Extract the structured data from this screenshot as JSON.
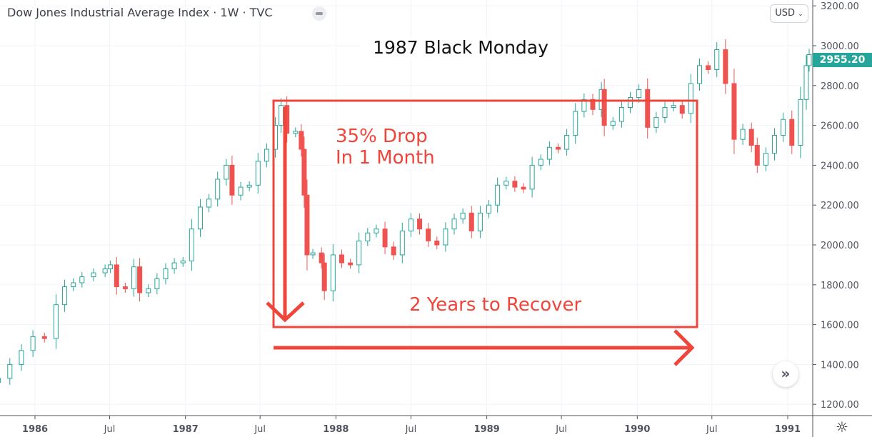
{
  "header": {
    "title": "Dow Jones Industrial Average Index · 1W · TVC",
    "currency": "USD"
  },
  "last_price": "2955.20",
  "annotations": {
    "headline": "1987 Black Monday",
    "drop_line1": "35% Drop",
    "drop_line2": "In 1 Month",
    "recover": "2 Years to Recover"
  },
  "colors": {
    "up": "#26a69a",
    "down": "#ef5350",
    "annotation": "#f0453a",
    "last_price_bg": "#26a69a"
  },
  "icons": {
    "scroll": "double-chevron-right-icon",
    "settings": "gear-icon"
  },
  "chart_data": {
    "type": "candlestick",
    "interval": "1W",
    "ylim": [
      1200,
      3200
    ],
    "yticks": [
      "3200.00",
      "3000.00",
      "2800.00",
      "2600.00",
      "2400.00",
      "2200.00",
      "2000.00",
      "1800.00",
      "1600.00",
      "1400.00",
      "1200.00"
    ],
    "ytick_values": [
      3200,
      3000,
      2800,
      2600,
      2400,
      2200,
      2000,
      1800,
      1600,
      1400,
      1200
    ],
    "xticks": [
      {
        "label": "1986",
        "date": "1986-01-01"
      },
      {
        "label": "Jul",
        "date": "1986-07-01"
      },
      {
        "label": "1987",
        "date": "1987-01-01"
      },
      {
        "label": "Jul",
        "date": "1987-07-01"
      },
      {
        "label": "1988",
        "date": "1988-01-01"
      },
      {
        "label": "Jul",
        "date": "1988-07-01"
      },
      {
        "label": "1989",
        "date": "1989-01-01"
      },
      {
        "label": "Jul",
        "date": "1989-07-01"
      },
      {
        "label": "1990",
        "date": "1990-01-01"
      },
      {
        "label": "Jul",
        "date": "1990-07-01"
      },
      {
        "label": "1991",
        "date": "1991-01-01"
      }
    ],
    "grid": true,
    "closes": [
      [
        "1985-10-04",
        1330
      ],
      [
        "1985-11-01",
        1400
      ],
      [
        "1985-11-29",
        1470
      ],
      [
        "1985-12-27",
        1540
      ],
      [
        "1986-01-24",
        1530
      ],
      [
        "1986-02-21",
        1700
      ],
      [
        "1986-03-14",
        1790
      ],
      [
        "1986-04-04",
        1810
      ],
      [
        "1986-04-25",
        1840
      ],
      [
        "1986-05-23",
        1860
      ],
      [
        "1986-06-20",
        1880
      ],
      [
        "1986-07-03",
        1900
      ],
      [
        "1986-07-18",
        1790
      ],
      [
        "1986-08-08",
        1780
      ],
      [
        "1986-08-29",
        1890
      ],
      [
        "1986-09-12",
        1760
      ],
      [
        "1986-10-03",
        1780
      ],
      [
        "1986-10-24",
        1830
      ],
      [
        "1986-11-14",
        1880
      ],
      [
        "1986-12-05",
        1910
      ],
      [
        "1986-12-26",
        1920
      ],
      [
        "1987-01-16",
        2080
      ],
      [
        "1987-02-06",
        2190
      ],
      [
        "1987-02-27",
        2230
      ],
      [
        "1987-03-20",
        2330
      ],
      [
        "1987-04-10",
        2400
      ],
      [
        "1987-04-24",
        2250
      ],
      [
        "1987-05-15",
        2290
      ],
      [
        "1987-06-05",
        2300
      ],
      [
        "1987-06-26",
        2420
      ],
      [
        "1987-07-17",
        2480
      ],
      [
        "1987-08-07",
        2600
      ],
      [
        "1987-08-21",
        2700
      ],
      [
        "1987-09-04",
        2560
      ],
      [
        "1987-09-25",
        2570
      ],
      [
        "1987-10-09",
        2480
      ],
      [
        "1987-10-16",
        2250
      ],
      [
        "1987-10-23",
        1950
      ],
      [
        "1987-11-06",
        1960
      ],
      [
        "1987-11-27",
        1910
      ],
      [
        "1987-12-04",
        1770
      ],
      [
        "1987-12-25",
        1950
      ],
      [
        "1988-01-15",
        1910
      ],
      [
        "1988-02-05",
        1900
      ],
      [
        "1988-02-26",
        2020
      ],
      [
        "1988-03-18",
        2060
      ],
      [
        "1988-04-08",
        2080
      ],
      [
        "1988-04-29",
        1990
      ],
      [
        "1988-05-20",
        1950
      ],
      [
        "1988-06-10",
        2070
      ],
      [
        "1988-07-01",
        2130
      ],
      [
        "1988-07-22",
        2080
      ],
      [
        "1988-08-12",
        2020
      ],
      [
        "1988-09-02",
        2000
      ],
      [
        "1988-09-23",
        2080
      ],
      [
        "1988-10-14",
        2130
      ],
      [
        "1988-11-04",
        2160
      ],
      [
        "1988-11-25",
        2070
      ],
      [
        "1988-12-16",
        2160
      ],
      [
        "1989-01-06",
        2200
      ],
      [
        "1989-01-27",
        2300
      ],
      [
        "1989-02-17",
        2320
      ],
      [
        "1989-03-10",
        2290
      ],
      [
        "1989-03-31",
        2280
      ],
      [
        "1989-04-21",
        2400
      ],
      [
        "1989-05-12",
        2430
      ],
      [
        "1989-06-02",
        2490
      ],
      [
        "1989-06-23",
        2480
      ],
      [
        "1989-07-14",
        2550
      ],
      [
        "1989-08-04",
        2670
      ],
      [
        "1989-08-25",
        2730
      ],
      [
        "1989-09-15",
        2680
      ],
      [
        "1989-10-06",
        2780
      ],
      [
        "1989-10-13",
        2600
      ],
      [
        "1989-11-03",
        2620
      ],
      [
        "1989-11-24",
        2690
      ],
      [
        "1989-12-15",
        2740
      ],
      [
        "1990-01-05",
        2780
      ],
      [
        "1990-01-26",
        2590
      ],
      [
        "1990-02-16",
        2640
      ],
      [
        "1990-03-09",
        2690
      ],
      [
        "1990-03-30",
        2700
      ],
      [
        "1990-04-20",
        2660
      ],
      [
        "1990-05-11",
        2810
      ],
      [
        "1990-06-01",
        2900
      ],
      [
        "1990-06-22",
        2880
      ],
      [
        "1990-07-13",
        2980
      ],
      [
        "1990-08-03",
        2810
      ],
      [
        "1990-08-24",
        2530
      ],
      [
        "1990-09-14",
        2580
      ],
      [
        "1990-10-05",
        2500
      ],
      [
        "1990-10-19",
        2400
      ],
      [
        "1990-11-09",
        2460
      ],
      [
        "1990-11-30",
        2550
      ],
      [
        "1990-12-21",
        2630
      ],
      [
        "1991-01-11",
        2500
      ],
      [
        "1991-02-01",
        2730
      ],
      [
        "1991-02-15",
        2900
      ],
      [
        "1991-02-22",
        2955.2
      ]
    ]
  }
}
